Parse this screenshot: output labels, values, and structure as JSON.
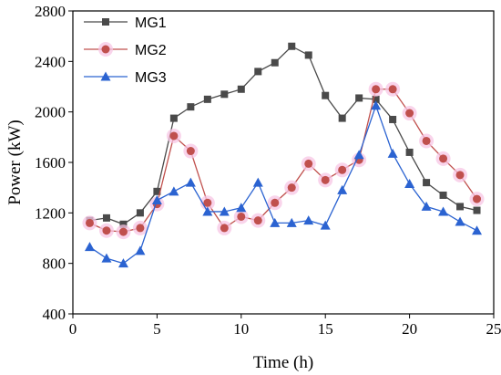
{
  "chart_data": {
    "type": "line",
    "xlabel": "Time (h)",
    "ylabel": "Power (kW)",
    "xlim": [
      0,
      25
    ],
    "ylim": [
      400,
      2800
    ],
    "xticks": [
      0,
      5,
      10,
      15,
      20,
      25
    ],
    "yticks": [
      400,
      800,
      1200,
      1600,
      2000,
      2400,
      2800
    ],
    "grid": false,
    "legend": "top-left",
    "x": [
      1,
      2,
      3,
      4,
      5,
      6,
      7,
      8,
      9,
      10,
      11,
      12,
      13,
      14,
      15,
      16,
      17,
      18,
      19,
      20,
      21,
      22,
      23,
      24
    ],
    "series": [
      {
        "name": "MG1",
        "color": "#4a4a4a",
        "marker": "square",
        "values": [
          1140,
          1160,
          1110,
          1200,
          1370,
          1950,
          2040,
          2100,
          2140,
          2180,
          2320,
          2390,
          2520,
          2450,
          2130,
          1950,
          2110,
          2100,
          1940,
          1680,
          1440,
          1340,
          1250,
          1220
        ]
      },
      {
        "name": "MG2",
        "color": "#c0504d",
        "marker": "circle",
        "values": [
          1120,
          1060,
          1050,
          1080,
          1270,
          1810,
          1690,
          1280,
          1080,
          1170,
          1140,
          1280,
          1400,
          1590,
          1460,
          1540,
          1620,
          2180,
          2180,
          1990,
          1770,
          1630,
          1500,
          1310
        ]
      },
      {
        "name": "MG3",
        "color": "#2b63d1",
        "marker": "triangle",
        "values": [
          930,
          840,
          800,
          900,
          1300,
          1370,
          1440,
          1210,
          1210,
          1240,
          1440,
          1120,
          1120,
          1140,
          1100,
          1380,
          1660,
          2050,
          1670,
          1430,
          1250,
          1210,
          1130,
          1060
        ]
      }
    ]
  }
}
